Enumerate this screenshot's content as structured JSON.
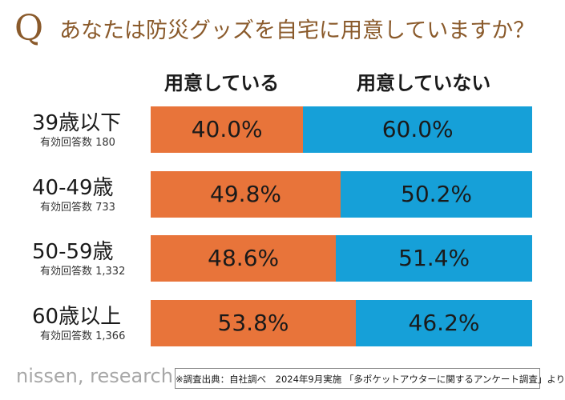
{
  "header": {
    "q_mark": "Q",
    "question": "あなたは防災グッズを自宅に用意していますか？"
  },
  "colors": {
    "prepared": "#e8743a",
    "not_prepared": "#16a0d8",
    "title": "#8a5a2b"
  },
  "chart_data": {
    "type": "bar",
    "orientation": "horizontal",
    "stacked": true,
    "percent": true,
    "categories": [
      "39歳以下",
      "40-49歳",
      "50-59歳",
      "60歳以上"
    ],
    "category_subtitles": [
      "有効回答数 180",
      "有効回答数 733",
      "有効回答数 1,332",
      "有効回答数 1,366"
    ],
    "series": [
      {
        "name": "用意している",
        "values": [
          40.0,
          49.8,
          48.6,
          53.8
        ],
        "labels": [
          "40.0%",
          "49.8%",
          "48.6%",
          "53.8%"
        ]
      },
      {
        "name": "用意していない",
        "values": [
          60.0,
          50.2,
          51.4,
          46.2
        ],
        "labels": [
          "60.0%",
          "50.2%",
          "51.4%",
          "46.2%"
        ]
      }
    ],
    "xlim": [
      0,
      100
    ],
    "legend": "top"
  },
  "footer": {
    "logo": "nissen, research",
    "source_note": "※調査出典：自社調べ　2024年9月実施 「多ポケットアウターに関するアンケート調査」より"
  }
}
